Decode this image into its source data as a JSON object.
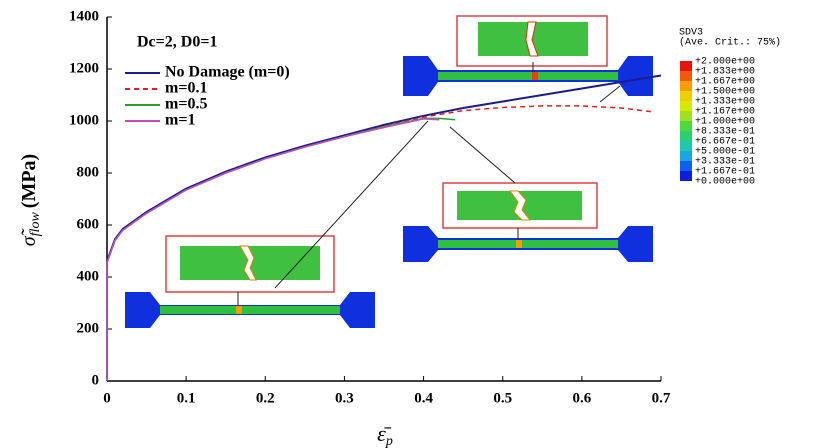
{
  "chart_data": {
    "type": "line",
    "annotation": "Dc=2, D0=1",
    "x_label": {
      "symbol": "ε̄",
      "subscript": "p"
    },
    "y_label": {
      "symbol": "σ̃",
      "subscript": "flow",
      "unit": "(MPa)"
    },
    "xlim": [
      0,
      0.7
    ],
    "ylim": [
      0,
      1400
    ],
    "xticks": [
      0,
      0.1,
      0.2,
      0.3,
      0.4,
      0.5,
      0.6,
      0.7
    ],
    "yticks": [
      0,
      200,
      400,
      600,
      800,
      1000,
      1200,
      1400
    ],
    "series": [
      {
        "name": "No Damage (m=0)",
        "color": "#1c1c8c",
        "dash": false,
        "x": [
          0,
          0,
          0.01,
          0.02,
          0.05,
          0.1,
          0.15,
          0.2,
          0.25,
          0.3,
          0.35,
          0.4,
          0.45,
          0.5,
          0.55,
          0.6,
          0.65,
          0.7
        ],
        "values": [
          0,
          460,
          545,
          585,
          650,
          740,
          805,
          860,
          905,
          945,
          985,
          1020,
          1050,
          1075,
          1100,
          1125,
          1150,
          1175
        ]
      },
      {
        "name": "m=0.1",
        "color": "#e02020",
        "dash": true,
        "x": [
          0,
          0,
          0.01,
          0.02,
          0.05,
          0.1,
          0.15,
          0.2,
          0.25,
          0.3,
          0.35,
          0.4,
          0.45,
          0.5,
          0.55,
          0.6,
          0.65,
          0.69
        ],
        "values": [
          0,
          455,
          540,
          580,
          645,
          735,
          800,
          855,
          900,
          940,
          980,
          1015,
          1040,
          1052,
          1058,
          1058,
          1050,
          1035
        ]
      },
      {
        "name": "m=0.5",
        "color": "#2aa02a",
        "dash": false,
        "x": [
          0,
          0,
          0.01,
          0.02,
          0.05,
          0.1,
          0.15,
          0.2,
          0.25,
          0.3,
          0.35,
          0.4,
          0.42,
          0.44
        ],
        "values": [
          0,
          455,
          540,
          580,
          645,
          735,
          800,
          855,
          900,
          940,
          978,
          1010,
          1010,
          1005
        ]
      },
      {
        "name": "m=1",
        "color": "#c050c0",
        "dash": false,
        "x": [
          0,
          0,
          0.01,
          0.02,
          0.05,
          0.1,
          0.15,
          0.2,
          0.25,
          0.3,
          0.35,
          0.4,
          0.42
        ],
        "values": [
          0,
          455,
          540,
          580,
          645,
          735,
          800,
          855,
          900,
          940,
          975,
          1008,
          1005
        ]
      }
    ]
  },
  "contour_legend": {
    "title": "SDV3",
    "subtitle": "(Ave. Crit.: 75%)",
    "labels": [
      "+2.000e+00",
      "+1.833e+00",
      "+1.667e+00",
      "+1.500e+00",
      "+1.333e+00",
      "+1.167e+00",
      "+1.000e+00",
      "+8.333e-01",
      "+6.667e-01",
      "+5.000e-01",
      "+3.333e-01",
      "+1.667e-01",
      "+0.000e+00"
    ],
    "colors": [
      "#e8140a",
      "#f05a0a",
      "#f5a000",
      "#f0d000",
      "#d8e800",
      "#a0e020",
      "#50d840",
      "#28d070",
      "#20c8b0",
      "#18a8e0",
      "#1060f0",
      "#0a1ee0"
    ]
  }
}
